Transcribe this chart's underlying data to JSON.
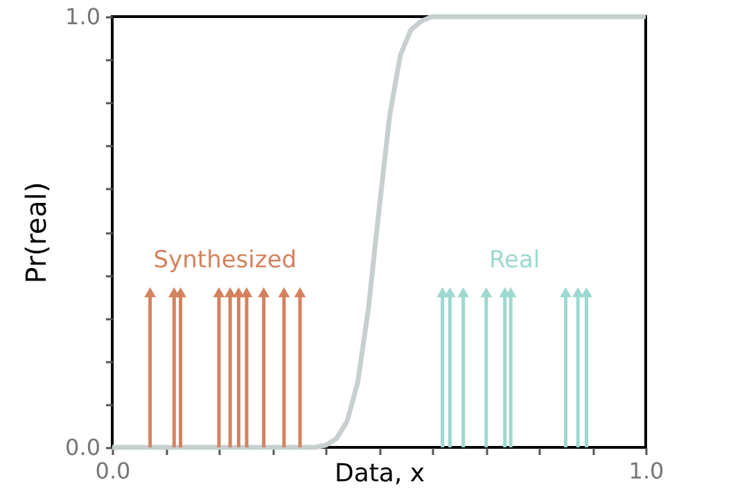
{
  "chart_data": {
    "type": "lollipop",
    "xlabel": "Data, x",
    "ylabel": "Pr(real)",
    "xlim": [
      0,
      1
    ],
    "ylim": [
      0,
      1
    ],
    "xticks": [
      {
        "value": 0,
        "label": "0.0"
      },
      {
        "value": 0.1,
        "label": null
      },
      {
        "value": 0.2,
        "label": null
      },
      {
        "value": 0.3,
        "label": null
      },
      {
        "value": 0.4,
        "label": null
      },
      {
        "value": 0.5,
        "label": null
      },
      {
        "value": 0.6,
        "label": null
      },
      {
        "value": 0.7,
        "label": null
      },
      {
        "value": 0.8,
        "label": null
      },
      {
        "value": 0.9,
        "label": null
      },
      {
        "value": 1,
        "label": "1.0"
      }
    ],
    "yticks": [
      {
        "value": 0,
        "label": "0.0"
      },
      {
        "value": 0.1,
        "label": null
      },
      {
        "value": 0.2,
        "label": null
      },
      {
        "value": 0.3,
        "label": null
      },
      {
        "value": 0.4,
        "label": null
      },
      {
        "value": 0.5,
        "label": null
      },
      {
        "value": 0.6,
        "label": null
      },
      {
        "value": 0.7,
        "label": null
      },
      {
        "value": 0.8,
        "label": null
      },
      {
        "value": 0.9,
        "label": null
      },
      {
        "value": 1,
        "label": "1.0"
      }
    ],
    "grid": false,
    "series": [
      {
        "type": "line",
        "color": "#c8cfd0",
        "x": [
          0,
          0.38,
          0.4,
          0.42,
          0.44,
          0.46,
          0.48,
          0.5,
          0.52,
          0.54,
          0.56,
          0.58,
          0.6,
          1
        ],
        "values": [
          0,
          0,
          0.005,
          0.02,
          0.06,
          0.15,
          0.32,
          0.55,
          0.77,
          0.91,
          0.97,
          0.99,
          1,
          1
        ]
      },
      {
        "name": "Synthesized",
        "color": "#d4825e",
        "marker": "triangle",
        "x": [
          0.071,
          0.116,
          0.128,
          0.2,
          0.221,
          0.237,
          0.252,
          0.284,
          0.322,
          0.352
        ],
        "values": [
          0.36,
          0.36,
          0.36,
          0.36,
          0.36,
          0.36,
          0.36,
          0.36,
          0.36,
          0.36
        ]
      },
      {
        "name": "Real",
        "color": "#9dd9d0",
        "marker": "triangle",
        "x": [
          0.619,
          0.633,
          0.658,
          0.701,
          0.736,
          0.747,
          0.85,
          0.873,
          0.889
        ],
        "values": [
          0.36,
          0.36,
          0.36,
          0.36,
          0.36,
          0.36,
          0.36,
          0.36,
          0.36
        ]
      }
    ]
  }
}
